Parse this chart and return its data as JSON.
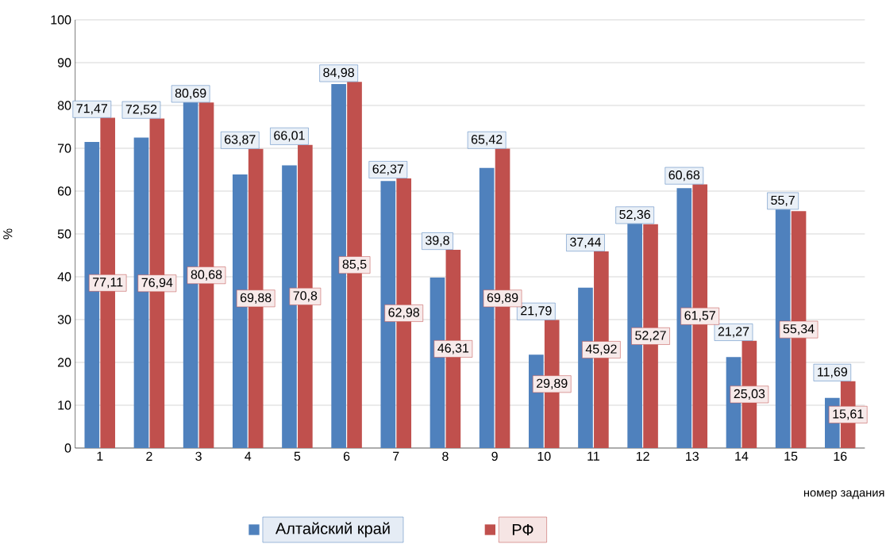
{
  "chart_data": {
    "type": "bar",
    "xlabel": "номер задания",
    "ylabel": "%",
    "categories": [
      "1",
      "2",
      "3",
      "4",
      "5",
      "6",
      "7",
      "8",
      "9",
      "10",
      "11",
      "12",
      "13",
      "14",
      "15",
      "16"
    ],
    "series": [
      {
        "name": "Алтайский край",
        "color": "#4f81bd",
        "values": [
          71.47,
          72.52,
          80.69,
          63.87,
          66.01,
          84.98,
          62.37,
          39.8,
          65.42,
          21.79,
          37.44,
          52.36,
          60.68,
          21.27,
          55.7,
          11.69
        ],
        "value_labels": [
          "71,47",
          "72,52",
          "80,69",
          "63,87",
          "66,01",
          "84,98",
          "62,37",
          "39,8",
          "65,42",
          "21,79",
          "37,44",
          "52,36",
          "60,68",
          "21,27",
          "55,7",
          "11,69"
        ]
      },
      {
        "name": "РФ",
        "color": "#c0504d",
        "values": [
          77.11,
          76.94,
          80.68,
          69.88,
          70.8,
          85.5,
          62.98,
          46.31,
          69.89,
          29.89,
          45.92,
          52.27,
          61.57,
          25.03,
          55.34,
          15.61
        ],
        "value_labels": [
          "77,11",
          "76,94",
          "80,68",
          "69,88",
          "70,8",
          "85,5",
          "62,98",
          "46,31",
          "69,89",
          "29,89",
          "45,92",
          "52,27",
          "61,57",
          "25,03",
          "55,34",
          "15,61"
        ]
      }
    ],
    "ylim": [
      0,
      100
    ],
    "yticks": [
      0,
      10,
      20,
      30,
      40,
      50,
      60,
      70,
      80,
      90,
      100
    ],
    "grid": "y",
    "legend": "bottom"
  }
}
